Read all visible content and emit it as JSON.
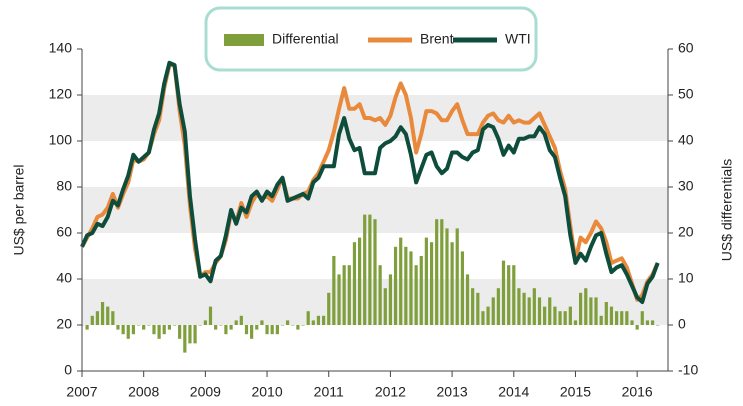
{
  "chart_data": {
    "type": "line",
    "x": [
      2007,
      2007.083,
      2007.167,
      2007.25,
      2007.333,
      2007.417,
      2007.5,
      2007.583,
      2007.667,
      2007.75,
      2007.833,
      2007.917,
      2008,
      2008.083,
      2008.167,
      2008.25,
      2008.333,
      2008.417,
      2008.5,
      2008.583,
      2008.667,
      2008.75,
      2008.833,
      2008.917,
      2009,
      2009.083,
      2009.167,
      2009.25,
      2009.333,
      2009.417,
      2009.5,
      2009.583,
      2009.667,
      2009.75,
      2009.833,
      2009.917,
      2010,
      2010.083,
      2010.167,
      2010.25,
      2010.333,
      2010.417,
      2010.5,
      2010.583,
      2010.667,
      2010.75,
      2010.833,
      2010.917,
      2011,
      2011.083,
      2011.167,
      2011.25,
      2011.333,
      2011.417,
      2011.5,
      2011.583,
      2011.667,
      2011.75,
      2011.833,
      2011.917,
      2012,
      2012.083,
      2012.167,
      2012.25,
      2012.333,
      2012.417,
      2012.5,
      2012.583,
      2012.667,
      2012.75,
      2012.833,
      2012.917,
      2013,
      2013.083,
      2013.167,
      2013.25,
      2013.333,
      2013.417,
      2013.5,
      2013.583,
      2013.667,
      2013.75,
      2013.833,
      2013.917,
      2014,
      2014.083,
      2014.167,
      2014.25,
      2014.333,
      2014.417,
      2014.5,
      2014.583,
      2014.667,
      2014.75,
      2014.833,
      2014.917,
      2015,
      2015.083,
      2015.167,
      2015.25,
      2015.333,
      2015.417,
      2015.5,
      2015.583,
      2015.667,
      2015.75,
      2015.833,
      2015.917,
      2016,
      2016.083,
      2016.167,
      2016.25,
      2016.333
    ],
    "series": [
      {
        "name": "Differential",
        "color": "#7f9f3c",
        "axis": "y2",
        "kind": "bar",
        "values": [
          0,
          -1,
          2,
          3,
          5,
          4,
          3,
          -1,
          -2,
          -3,
          -2,
          0,
          -1,
          0,
          -2,
          -3,
          -2,
          -1,
          0,
          -3,
          -6,
          -4,
          -4,
          0,
          1,
          4,
          -1,
          0,
          -2,
          -1,
          1,
          2,
          -2,
          -3,
          -1,
          1,
          -2,
          -2,
          -2,
          0,
          1,
          0,
          -1,
          0,
          3,
          1,
          2,
          2,
          7,
          15,
          11,
          13,
          13,
          18,
          19,
          24,
          24,
          23,
          13,
          8,
          11,
          17,
          19,
          17,
          16,
          13,
          15,
          19,
          18,
          23,
          23,
          21,
          18,
          21,
          16,
          11,
          8,
          7,
          3,
          4,
          6,
          8,
          14,
          13,
          13,
          8,
          7,
          6,
          8,
          6,
          4,
          6,
          4,
          3,
          3,
          4,
          1,
          7,
          8,
          6,
          6,
          2,
          5,
          4,
          3,
          3,
          3,
          1,
          -1,
          3,
          1,
          1,
          0
        ]
      },
      {
        "name": "Brent",
        "color": "#e8893c",
        "kind": "line",
        "values": [
          54,
          58,
          62,
          67,
          68,
          71,
          77,
          71,
          77,
          82,
          92,
          91,
          92,
          95,
          103,
          109,
          123,
          133,
          133,
          113,
          98,
          72,
          53,
          41,
          43,
          43,
          47,
          50,
          57,
          69,
          65,
          73,
          67,
          73,
          77,
          75,
          76,
          74,
          79,
          84,
          75,
          75,
          75,
          77,
          78,
          83,
          86,
          91,
          96,
          104,
          114,
          123,
          114,
          114,
          116,
          110,
          110,
          109,
          110,
          107,
          111,
          119,
          125,
          120,
          110,
          95,
          103,
          113,
          113,
          112,
          109,
          109,
          113,
          116,
          109,
          103,
          103,
          103,
          108,
          111,
          112,
          109,
          108,
          111,
          108,
          109,
          108,
          108,
          110,
          112,
          107,
          102,
          97,
          87,
          79,
          63,
          48,
          58,
          56,
          60,
          65,
          62,
          56,
          47,
          48,
          49,
          45,
          38,
          31,
          33,
          39,
          42,
          47
        ]
      },
      {
        "name": "WTI",
        "color": "#0e4d3b",
        "kind": "line",
        "values": [
          54,
          59,
          60,
          64,
          63,
          67,
          74,
          72,
          79,
          85,
          94,
          91,
          93,
          95,
          105,
          112,
          125,
          134,
          133,
          116,
          104,
          76,
          57,
          41,
          42,
          39,
          48,
          50,
          59,
          70,
          64,
          71,
          69,
          76,
          78,
          74,
          78,
          76,
          81,
          84,
          74,
          75,
          76,
          77,
          75,
          82,
          84,
          89,
          89,
          89,
          103,
          110,
          101,
          96,
          97,
          86,
          86,
          86,
          97,
          99,
          100,
          102,
          106,
          103,
          94,
          82,
          88,
          94,
          95,
          89,
          86,
          88,
          95,
          95,
          93,
          92,
          95,
          96,
          105,
          107,
          106,
          101,
          94,
          98,
          95,
          101,
          101,
          102,
          102,
          106,
          103,
          96,
          93,
          84,
          76,
          59,
          47,
          51,
          48,
          54,
          59,
          60,
          51,
          43,
          45,
          46,
          42,
          37,
          32,
          30,
          38,
          41,
          47
        ]
      }
    ],
    "ylabel": "US$ per barrel",
    "y2label": "US$ differentials",
    "xlim": [
      2007,
      2016.5
    ],
    "xticks": [
      2007,
      2008,
      2009,
      2010,
      2011,
      2012,
      2013,
      2014,
      2015,
      2016
    ],
    "ylim": [
      0,
      140
    ],
    "yticks": [
      0,
      20,
      40,
      60,
      80,
      100,
      120,
      140
    ],
    "y2lim": [
      -10,
      60
    ],
    "y2ticks": [
      -10,
      0,
      10,
      20,
      30,
      40,
      50,
      60
    ],
    "grid": "bands",
    "legend": "top"
  }
}
